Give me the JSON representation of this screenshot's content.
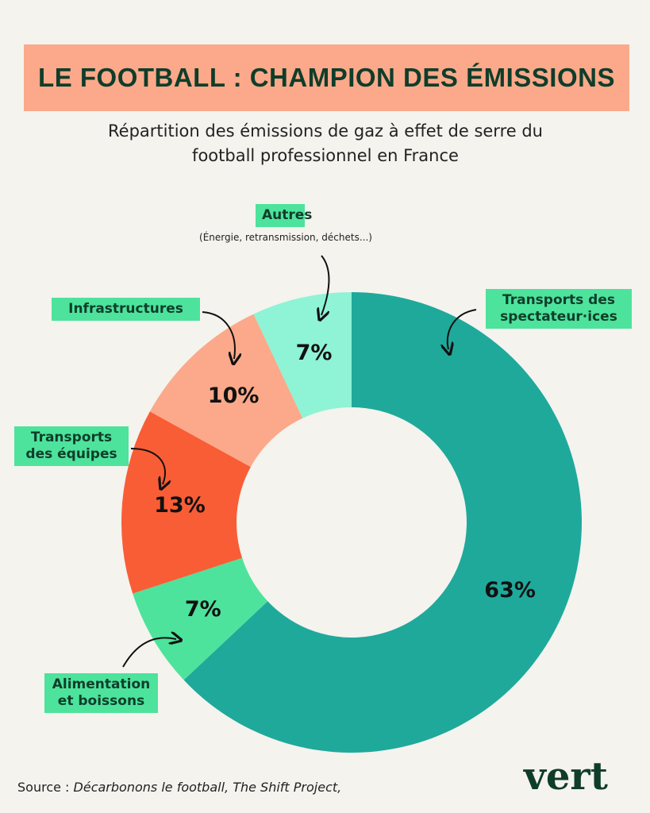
{
  "chart_data": {
    "type": "donut",
    "title": "LE FOOTBALL : CHAMPION DES ÉMISSIONS",
    "subtitle": "Répartition des émissions de gaz à effet de serre du football professionnel en France",
    "categories": [
      "Transports des spectateur·ices",
      "Alimentation et boissons",
      "Transports des équipes",
      "Infrastructures",
      "Autres"
    ],
    "values": [
      63,
      7,
      13,
      10,
      7
    ],
    "value_labels": [
      "63%",
      "7%",
      "13%",
      "10%",
      "7%"
    ],
    "colors": [
      "#1fa99b",
      "#4de39c",
      "#f95d36",
      "#fba98a",
      "#8ff3d5"
    ],
    "note": "(Énergie, retransmission, déchets...)",
    "source_label": "Source :",
    "source": "Décarbonons le football, The Shift Project,",
    "logo": "vert"
  }
}
